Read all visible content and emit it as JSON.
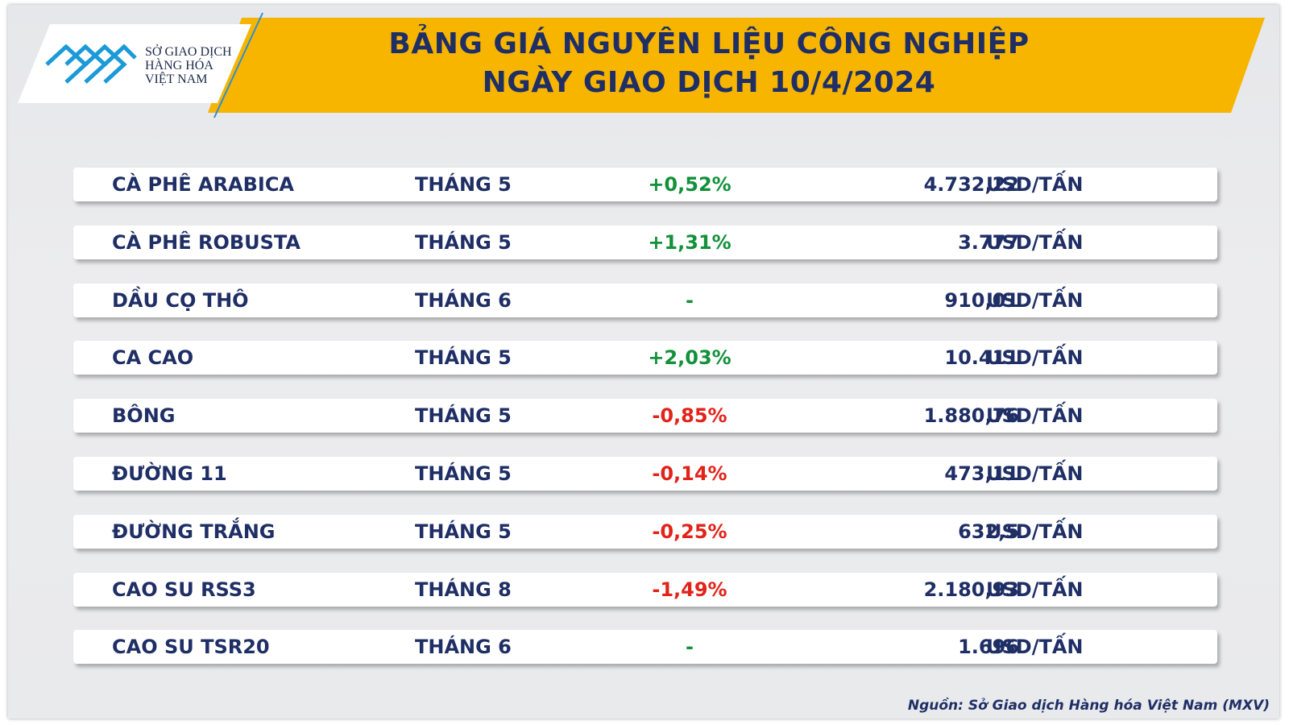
{
  "header": {
    "logo": [
      "SỞ GIAO DỊCH",
      "HÀNG HÓA",
      "VIỆT NAM"
    ],
    "title": [
      "BẢNG GIÁ NGUYÊN LIỆU CÔNG NGHIỆP",
      "NGÀY GIAO DỊCH 10/4/2024"
    ]
  },
  "table": {
    "rows": [
      [
        "CÀ PHÊ ARABICA",
        "THÁNG 5",
        "+0,52%",
        "4.732,22",
        "USD/TẤN"
      ],
      [
        "CÀ PHÊ ROBUSTA",
        "THÁNG 5",
        "+1,31%",
        "3.777",
        "USD/TẤN"
      ],
      [
        "DẦU CỌ THÔ",
        "THÁNG 6",
        "-",
        "910,01",
        "USD/TẤN"
      ],
      [
        "CA CAO",
        "THÁNG 5",
        "+2,03%",
        "10.411",
        "USD/TẤN"
      ],
      [
        "BÔNG",
        "THÁNG 5",
        "-0,85%",
        "1.880,76",
        "USD/TẤN"
      ],
      [
        "ĐƯỜNG 11",
        "THÁNG 5",
        "-0,14%",
        "473,11",
        "USD/TẤN"
      ],
      [
        "ĐƯỜNG TRẮNG",
        "THÁNG 5",
        "-0,25%",
        "632,5",
        "USD/TẤN"
      ],
      [
        "CAO SU RSS3",
        "THÁNG 8",
        "-1,49%",
        "2.180,93",
        "USD/TẤN"
      ],
      [
        "CAO SU TSR20",
        "THÁNG 6",
        "-",
        "1.696",
        "USD/TẤN"
      ]
    ]
  },
  "source": "Nguồn: Sở Giao dịch Hàng hóa Việt Nam (MXV)"
}
